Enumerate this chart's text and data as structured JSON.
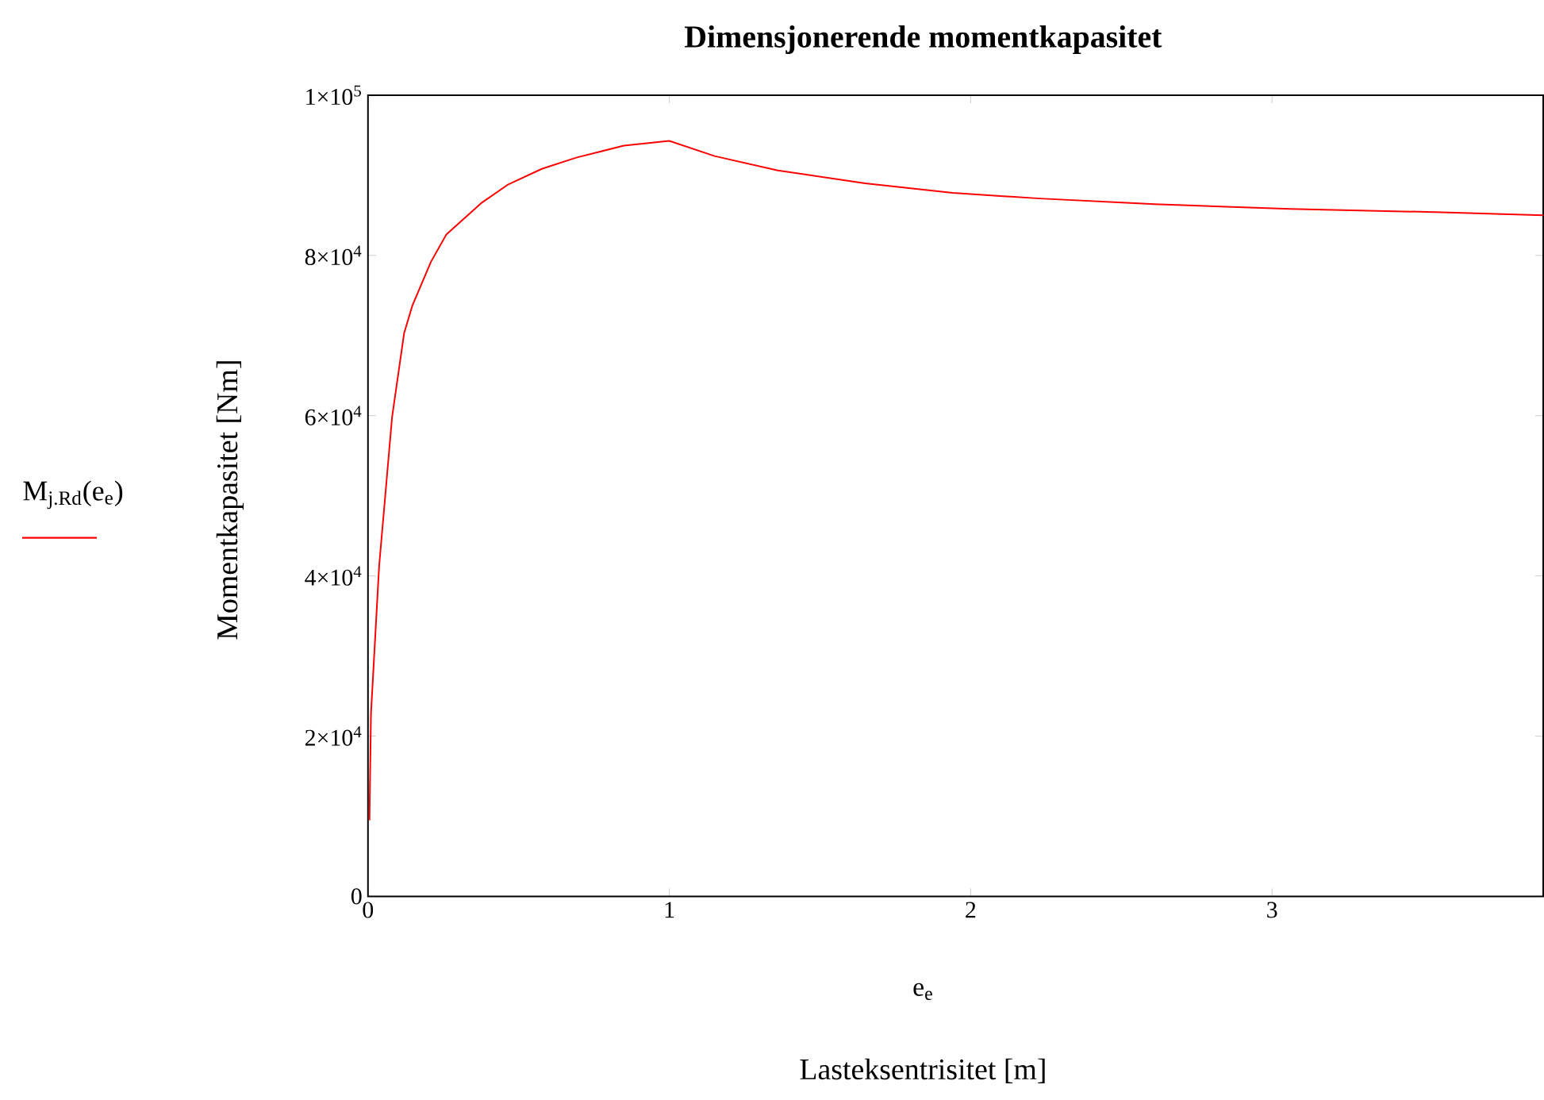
{
  "chart_data": {
    "type": "line",
    "title": "Dimensjonerende momentkapasitet",
    "xlabel": "Lasteksentrisitet [m]",
    "ylabel": "Momentkapasitet [Nm]",
    "annotations": [
      "e$_{e}$"
    ],
    "xlim": [
      0,
      3.9
    ],
    "xticks": [
      0,
      1,
      2,
      3
    ],
    "ylim": [
      0,
      100000
    ],
    "yticks": [
      0,
      {
        "value": 20000,
        "label": "2×10$^{4}$"
      },
      {
        "value": 40000,
        "label": "4×10$^{4}$"
      },
      {
        "value": 60000,
        "label": "6×10$^{4}$"
      },
      {
        "value": 80000,
        "label": "8×10$^{4}$"
      },
      {
        "value": 100000,
        "label": "1×10$^{5}$"
      }
    ],
    "legend": "left",
    "grid": false,
    "series": [
      {
        "name": "M$_{j.Rd}$(e$_{e}$)",
        "color": "#ff0000",
        "x": [
          0.005,
          0.01,
          0.037,
          0.08,
          0.12,
          0.147,
          0.209,
          0.26,
          0.375,
          0.463,
          0.577,
          0.691,
          0.849,
          1.0,
          1.15,
          1.36,
          1.65,
          1.94,
          2.23,
          2.61,
          3.06,
          3.54,
          3.9
        ],
        "values": [
          9500,
          22800,
          41200,
          59800,
          70300,
          73700,
          79200,
          82600,
          86500,
          88800,
          90800,
          92200,
          93700,
          94300,
          92400,
          90600,
          89000,
          87800,
          87100,
          86400,
          85800,
          85400,
          85000
        ]
      }
    ]
  }
}
